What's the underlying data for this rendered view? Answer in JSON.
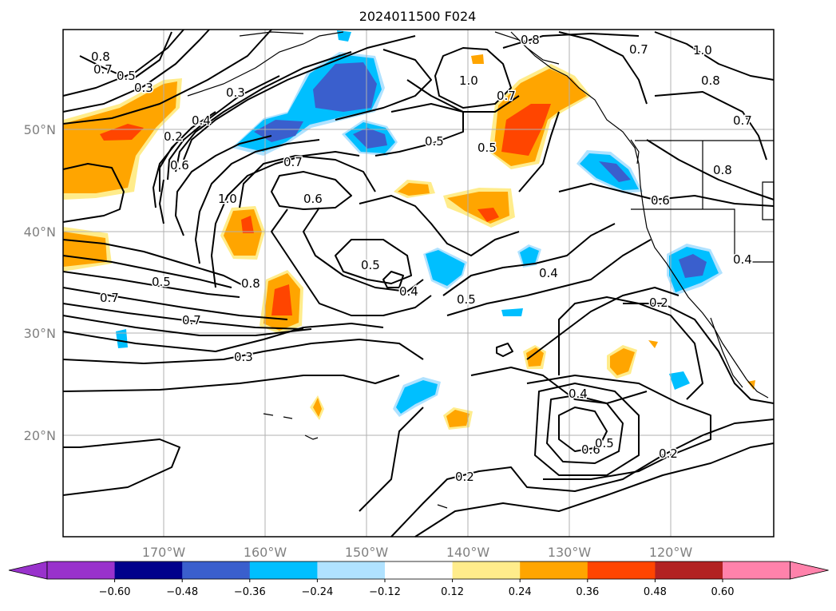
{
  "title": "2024011500 F024",
  "lat_labels": [
    "50°N",
    "40°N",
    "30°N",
    "20°N"
  ],
  "lon_labels": [
    "170°W",
    "160°W",
    "150°W",
    "140°W",
    "130°W",
    "120°W"
  ],
  "colorbar": {
    "ticks": [
      "−0.60",
      "−0.48",
      "−0.36",
      "−0.24",
      "−0.12",
      "0.12",
      "0.24",
      "0.36",
      "0.48",
      "0.60"
    ],
    "colors": [
      "#9932cc",
      "#00008b",
      "#3a5fcd",
      "#00bfff",
      "#b0e2ff",
      "#ffffff",
      "#ffec8b",
      "#ffa500",
      "#ff4500",
      "#b22222",
      "#ff82ab"
    ]
  },
  "contour_labels": [
    {
      "text": "0.8"
    },
    {
      "text": "0.7"
    },
    {
      "text": "0.5"
    },
    {
      "text": "0.3"
    },
    {
      "text": "0.3"
    },
    {
      "text": "0.2"
    },
    {
      "text": "0.4"
    },
    {
      "text": "0.6"
    },
    {
      "text": "1.0"
    },
    {
      "text": "0.7"
    },
    {
      "text": "0.6"
    },
    {
      "text": "0.5"
    },
    {
      "text": "1.0"
    },
    {
      "text": "0.7"
    },
    {
      "text": "0.5"
    },
    {
      "text": "0.8"
    },
    {
      "text": "0.7"
    },
    {
      "text": "1.0"
    },
    {
      "text": "0.8"
    },
    {
      "text": "0.7"
    },
    {
      "text": "0.8"
    },
    {
      "text": "0.6"
    },
    {
      "text": "0.4"
    },
    {
      "text": "0.5"
    },
    {
      "text": "0.4"
    },
    {
      "text": "0.5"
    },
    {
      "text": "0.4"
    },
    {
      "text": "0.2"
    },
    {
      "text": "0.5"
    },
    {
      "text": "0.8"
    },
    {
      "text": "0.7"
    },
    {
      "text": "0.7"
    },
    {
      "text": "0.3"
    },
    {
      "text": "0.4"
    },
    {
      "text": "0.6"
    },
    {
      "text": "0.5"
    },
    {
      "text": "0.2"
    },
    {
      "text": "0.2"
    }
  ]
}
